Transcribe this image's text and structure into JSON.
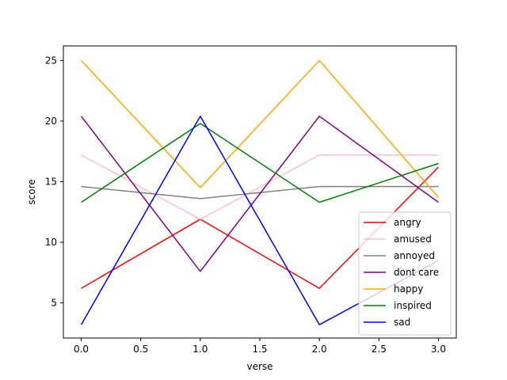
{
  "chart_data": {
    "type": "line",
    "title": "",
    "xlabel": "verse",
    "ylabel": "score",
    "x": [
      0,
      1,
      2,
      3
    ],
    "xlim": [
      -0.15,
      3.15
    ],
    "ylim": [
      2.1,
      26.2
    ],
    "xticks": [
      0.0,
      0.5,
      1.0,
      1.5,
      2.0,
      2.5,
      3.0
    ],
    "xtick_labels": [
      "0.0",
      "0.5",
      "1.0",
      "1.5",
      "2.0",
      "2.5",
      "3.0"
    ],
    "yticks": [
      5,
      10,
      15,
      20,
      25
    ],
    "ytick_labels": [
      "5",
      "10",
      "15",
      "20",
      "25"
    ],
    "grid": false,
    "legend_position": "lower-right",
    "series": [
      {
        "name": "angry",
        "color": "#ff0000",
        "values": [
          6.2,
          11.9,
          6.2,
          16.2
        ]
      },
      {
        "name": "amused",
        "color": "#ffc0cb",
        "values": [
          17.2,
          11.9,
          17.2,
          17.2
        ]
      },
      {
        "name": "annoyed",
        "color": "#808080",
        "values": [
          14.6,
          13.6,
          14.6,
          14.6
        ]
      },
      {
        "name": "dont care",
        "color": "#800080",
        "values": [
          20.4,
          7.6,
          20.4,
          13.3
        ]
      },
      {
        "name": "happy",
        "color": "#ffa500",
        "values": [
          25.0,
          14.5,
          25.0,
          13.7
        ]
      },
      {
        "name": "inspired",
        "color": "#008000",
        "values": [
          13.3,
          19.8,
          13.3,
          16.5
        ]
      },
      {
        "name": "sad",
        "color": "#0000ff",
        "values": [
          3.2,
          20.4,
          3.2,
          8.5
        ]
      }
    ]
  }
}
